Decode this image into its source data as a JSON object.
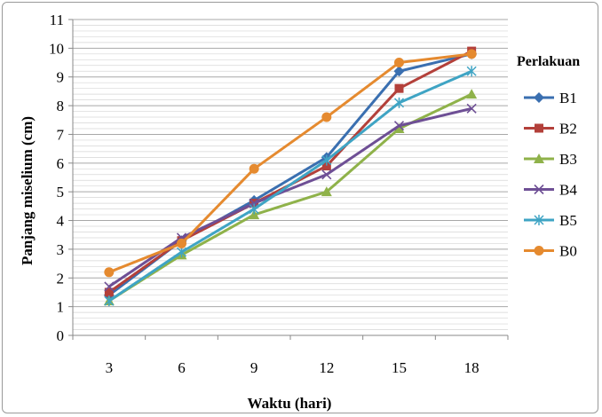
{
  "chart_data": {
    "type": "line",
    "xlabel": "Waktu (hari)",
    "ylabel": "Panjang miselium (cm)",
    "categories": [
      "3",
      "6",
      "9",
      "12",
      "15",
      "18"
    ],
    "ylim": [
      0,
      11
    ],
    "yticks": [
      "0",
      "1",
      "2",
      "3",
      "4",
      "5",
      "6",
      "7",
      "8",
      "9",
      "10",
      "11"
    ],
    "grid": true,
    "legend": {
      "title": "Perlakuan",
      "position": "right"
    },
    "series": [
      {
        "name": "B1",
        "color": "#3a6fb0",
        "marker": "diamond",
        "values": [
          1.4,
          3.3,
          4.7,
          6.2,
          9.2,
          9.8
        ]
      },
      {
        "name": "B2",
        "color": "#b3403a",
        "marker": "square",
        "values": [
          1.5,
          3.3,
          4.6,
          5.9,
          8.6,
          9.9
        ]
      },
      {
        "name": "B3",
        "color": "#8fb24a",
        "marker": "triangle",
        "values": [
          1.2,
          2.8,
          4.2,
          5.0,
          7.2,
          8.4
        ]
      },
      {
        "name": "B4",
        "color": "#6e4f95",
        "marker": "x",
        "values": [
          1.7,
          3.4,
          4.6,
          5.6,
          7.3,
          7.9
        ]
      },
      {
        "name": "B5",
        "color": "#3fa4c4",
        "marker": "star",
        "values": [
          1.2,
          2.9,
          4.4,
          6.1,
          8.1,
          9.2
        ]
      },
      {
        "name": "B0",
        "color": "#e58a2f",
        "marker": "circle",
        "values": [
          2.2,
          3.2,
          5.8,
          7.6,
          9.5,
          9.8
        ]
      }
    ]
  }
}
